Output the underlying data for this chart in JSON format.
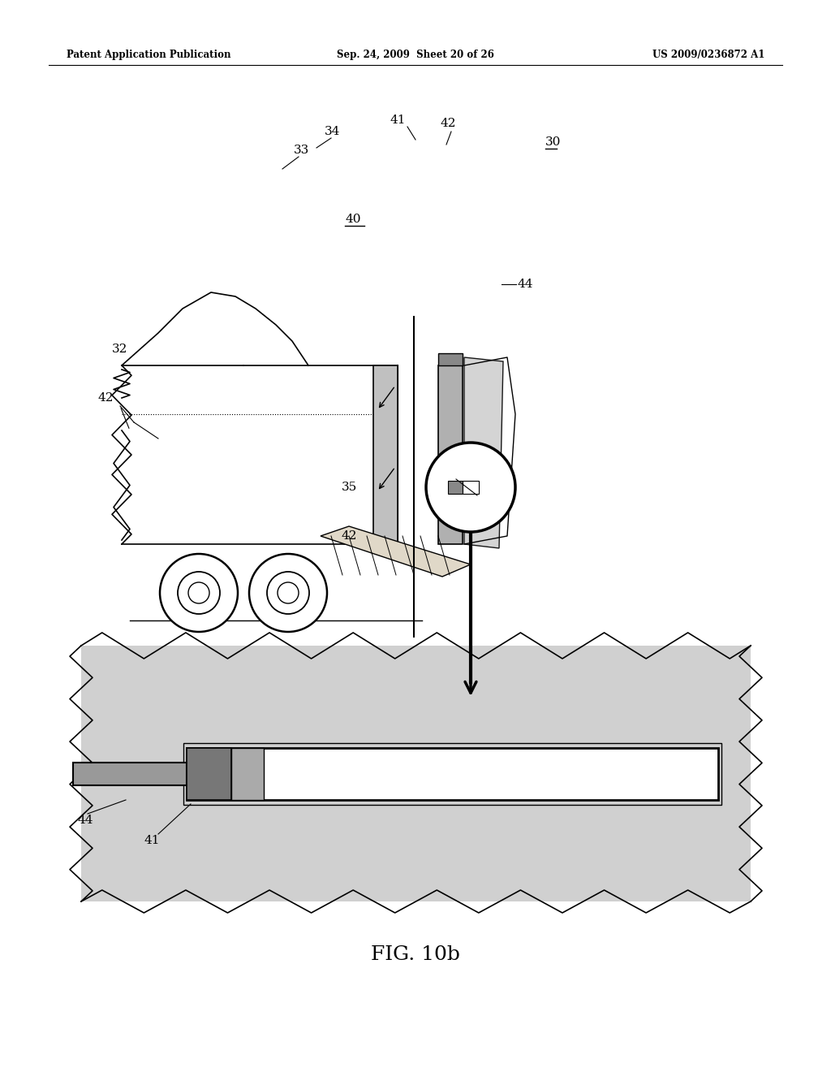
{
  "bg_color": "#ffffff",
  "header_left": "Patent Application Publication",
  "header_center": "Sep. 24, 2009  Sheet 20 of 26",
  "header_right": "US 2009/0236872 A1",
  "fig_label": "FIG. 10b",
  "gray_light": "#c8c8c8",
  "gray_mid": "#aaaaaa",
  "gray_dark": "#888888",
  "gray_bg": "#d0d0d0"
}
